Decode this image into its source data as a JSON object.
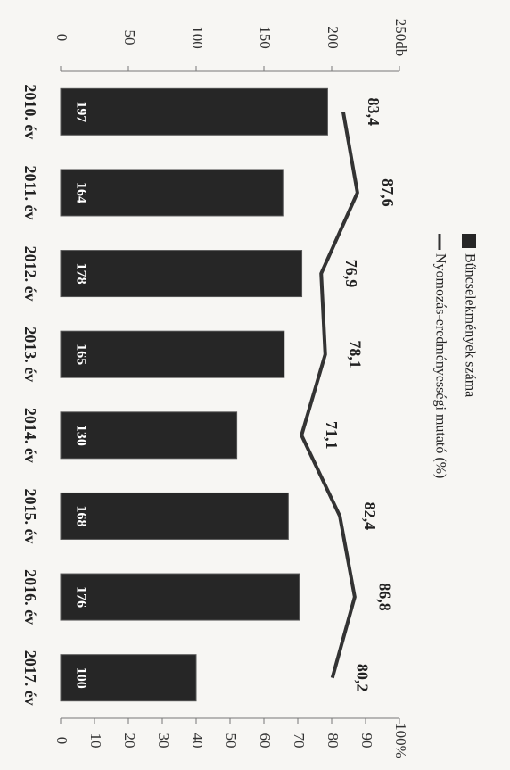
{
  "chart_data": {
    "type": "bar-line",
    "categories": [
      "2010. év",
      "2011. év",
      "2012. év",
      "2013. év",
      "2014. év",
      "2015. év",
      "2016. év",
      "2017. év"
    ],
    "series": [
      {
        "name": "Bűncselekmények száma",
        "type": "bar",
        "color": "#262626",
        "values": [
          197,
          164,
          178,
          165,
          130,
          168,
          176,
          100
        ]
      },
      {
        "name": "Nyomozás-eredményességi mutató (%)",
        "type": "line",
        "axis": "y2",
        "color": "#333333",
        "values": [
          83.4,
          87.6,
          76.9,
          78.1,
          71.1,
          82.4,
          86.8,
          80.2
        ],
        "value_labels": [
          "83,4",
          "87,6",
          "76,9",
          "78,1",
          "71,1",
          "82,4",
          "86,8",
          "80,2"
        ]
      }
    ],
    "ylim": [
      0,
      250
    ],
    "yticks": [
      0,
      50,
      100,
      150,
      200,
      {
        "value": 250,
        "label": "250db"
      }
    ],
    "y2lim": [
      0,
      100
    ],
    "y2ticks": [
      0,
      10,
      20,
      30,
      40,
      50,
      60,
      70,
      80,
      90,
      {
        "value": 100,
        "label": "100%"
      }
    ]
  }
}
